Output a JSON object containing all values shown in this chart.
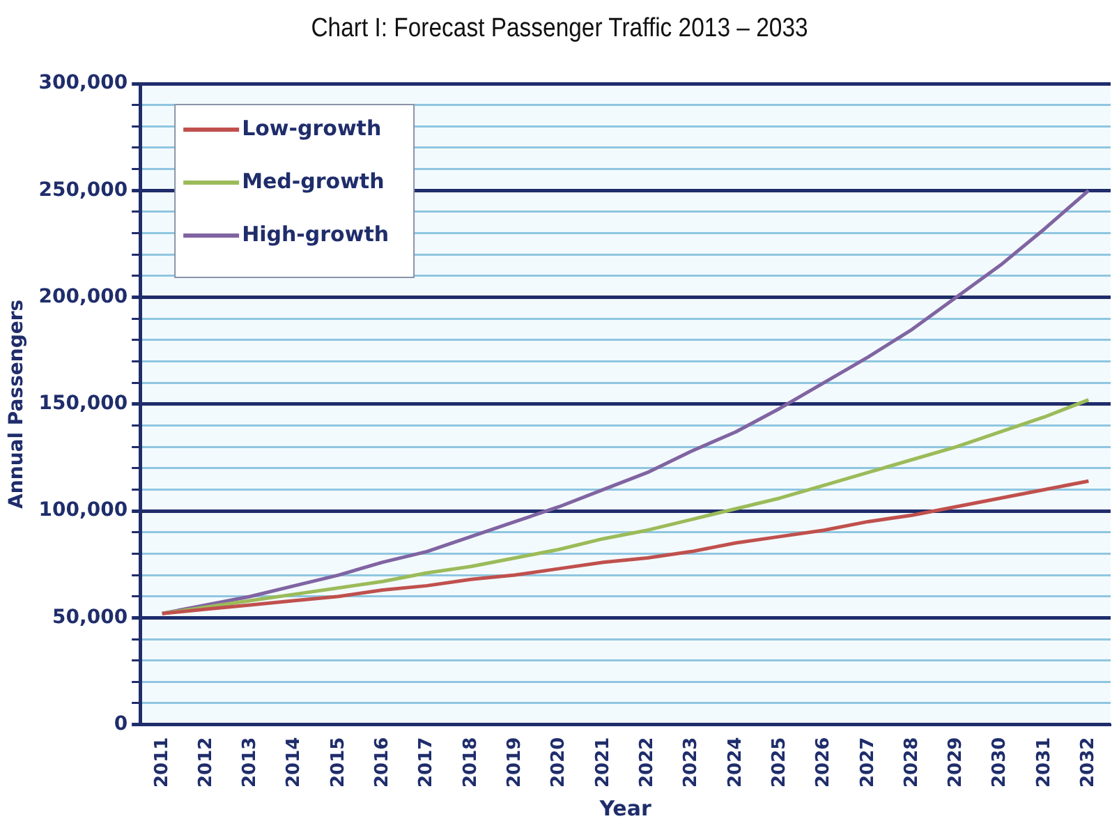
{
  "chart_data": {
    "type": "line",
    "title": "Chart I: Forecast Passenger Traffic 2013 – 2033",
    "xlabel": "Year",
    "ylabel": "Annual Passengers",
    "categories": [
      "2011",
      "2012",
      "2013",
      "2014",
      "2015",
      "2016",
      "2017",
      "2018",
      "2019",
      "2020",
      "2021",
      "2022",
      "2023",
      "2024",
      "2025",
      "2026",
      "2027",
      "2028",
      "2029",
      "2030",
      "2031",
      "2032"
    ],
    "series": [
      {
        "name": "Low-growth",
        "color": "#c0504d",
        "values": [
          52000,
          54000,
          56000,
          58000,
          60000,
          63000,
          65000,
          68000,
          70000,
          73000,
          76000,
          78000,
          81000,
          85000,
          88000,
          91000,
          95000,
          98000,
          102000,
          106000,
          110000,
          114000
        ]
      },
      {
        "name": "Med-growth",
        "color": "#9bbb59",
        "values": [
          52000,
          55000,
          58000,
          61000,
          64000,
          67000,
          71000,
          74000,
          78000,
          82000,
          87000,
          91000,
          96000,
          101000,
          106000,
          112000,
          118000,
          124000,
          130000,
          137000,
          144000,
          152000
        ]
      },
      {
        "name": "High-growth",
        "color": "#8064a2",
        "values": [
          52000,
          56000,
          60000,
          65000,
          70000,
          76000,
          81000,
          88000,
          95000,
          102000,
          110000,
          118000,
          128000,
          137000,
          148000,
          160000,
          172000,
          185000,
          200000,
          215000,
          232000,
          250000
        ]
      }
    ],
    "ylim": [
      0,
      300000
    ],
    "yticks": [
      {
        "value": 0,
        "label": "0"
      },
      {
        "value": 10000,
        "label": null
      },
      {
        "value": 20000,
        "label": null
      },
      {
        "value": 30000,
        "label": null
      },
      {
        "value": 40000,
        "label": null
      },
      {
        "value": 50000,
        "label": "50,000"
      },
      {
        "value": 60000,
        "label": null
      },
      {
        "value": 70000,
        "label": null
      },
      {
        "value": 80000,
        "label": null
      },
      {
        "value": 90000,
        "label": null
      },
      {
        "value": 100000,
        "label": "100,000"
      },
      {
        "value": 110000,
        "label": null
      },
      {
        "value": 120000,
        "label": null
      },
      {
        "value": 130000,
        "label": null
      },
      {
        "value": 140000,
        "label": null
      },
      {
        "value": 150000,
        "label": "150,000"
      },
      {
        "value": 160000,
        "label": null
      },
      {
        "value": 170000,
        "label": null
      },
      {
        "value": 180000,
        "label": null
      },
      {
        "value": 190000,
        "label": null
      },
      {
        "value": 200000,
        "label": "200,000"
      },
      {
        "value": 210000,
        "label": null
      },
      {
        "value": 220000,
        "label": null
      },
      {
        "value": 230000,
        "label": null
      },
      {
        "value": 240000,
        "label": null
      },
      {
        "value": 250000,
        "label": "250,000"
      },
      {
        "value": 260000,
        "label": null
      },
      {
        "value": 270000,
        "label": null
      },
      {
        "value": 280000,
        "label": null
      },
      {
        "value": 290000,
        "label": null
      },
      {
        "value": 300000,
        "label": "300,000"
      }
    ],
    "grid": "y",
    "legend": "top left",
    "marker": "none",
    "line_style": "solid"
  }
}
